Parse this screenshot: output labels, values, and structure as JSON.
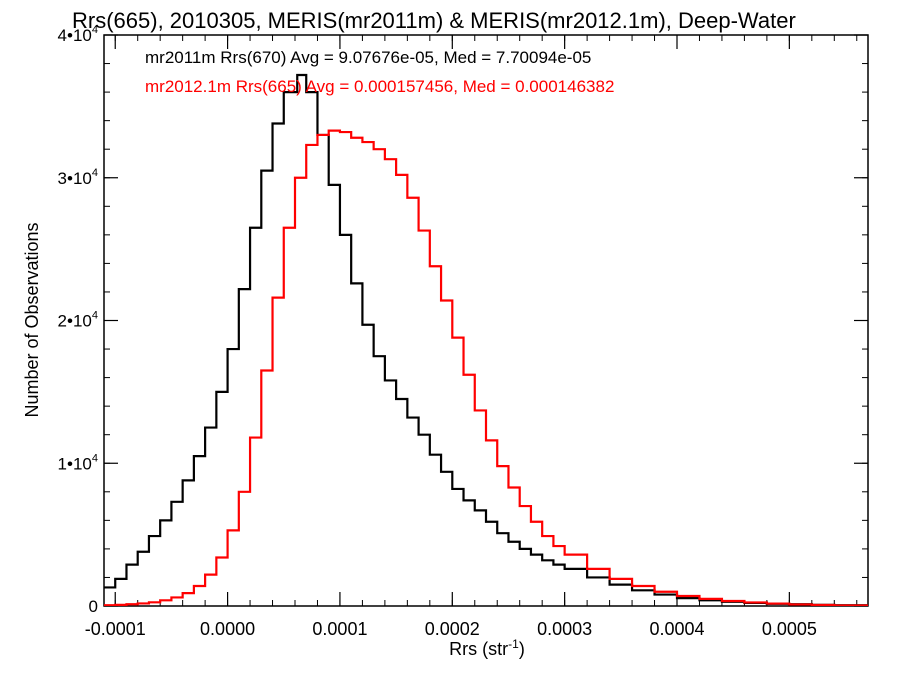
{
  "chart_data": {
    "type": "line",
    "title": "Rrs(665), 2010305, MERIS(mr2011m) & MERIS(mr2012.1m), Deep-Water",
    "xlabel": "Rrs (str",
    "xlabel_sup": "-1",
    "xlabel_close": ")",
    "ylabel": "Number of Observations",
    "xlim": [
      -0.00011,
      0.00057
    ],
    "ylim": [
      0,
      40000
    ],
    "grid": false,
    "x_ticks": [
      {
        "value": -0.0001,
        "label": "-0.0001"
      },
      {
        "value": 0.0,
        "label": "0.0000"
      },
      {
        "value": 0.0001,
        "label": "0.0001"
      },
      {
        "value": 0.0002,
        "label": "0.0002"
      },
      {
        "value": 0.0003,
        "label": "0.0003"
      },
      {
        "value": 0.0004,
        "label": "0.0004"
      },
      {
        "value": 0.0005,
        "label": "0.0005"
      }
    ],
    "y_ticks": [
      {
        "value": 0,
        "mant": "0",
        "exp": ""
      },
      {
        "value": 10000,
        "mant": "1•10",
        "exp": "4"
      },
      {
        "value": 20000,
        "mant": "2•10",
        "exp": "4"
      },
      {
        "value": 30000,
        "mant": "3•10",
        "exp": "4"
      },
      {
        "value": 40000,
        "mant": "4•10",
        "exp": "4"
      }
    ],
    "annotations": [
      {
        "text": "mr2011m Rrs(670) Avg = 9.07676e-05, Med = 7.70094e-05",
        "color": "#000000"
      },
      {
        "text": "mr2012.1m Rrs(665) Avg = 0.000157456, Med = 0.000146382",
        "color": "#ff0000"
      }
    ],
    "series": [
      {
        "color": "#000000",
        "x": [
          -0.00011,
          -0.0001,
          -9e-05,
          -8e-05,
          -7e-05,
          -6e-05,
          -5e-05,
          -4e-05,
          -3e-05,
          -2e-05,
          -1e-05,
          0.0,
          1e-05,
          2e-05,
          3e-05,
          4e-05,
          5e-05,
          6.2e-05,
          7e-05,
          8e-05,
          9e-05,
          0.0001,
          0.00011,
          0.00012,
          0.00013,
          0.00014,
          0.00015,
          0.00016,
          0.00017,
          0.00018,
          0.00019,
          0.0002,
          0.00021,
          0.00022,
          0.00023,
          0.00024,
          0.00025,
          0.00026,
          0.00027,
          0.00028,
          0.00029,
          0.0003,
          0.00032,
          0.00034,
          0.00036,
          0.00038,
          0.0004,
          0.00042,
          0.00044,
          0.00046,
          0.00048,
          0.0005,
          0.00052,
          0.00054,
          0.00057
        ],
        "y": [
          1300,
          1900,
          2900,
          3800,
          4900,
          6000,
          7300,
          8800,
          10500,
          12500,
          15000,
          18000,
          22200,
          26500,
          30500,
          33800,
          36000,
          37200,
          36000,
          33000,
          29500,
          26000,
          22600,
          19700,
          17500,
          15800,
          14500,
          13200,
          12000,
          10600,
          9400,
          8200,
          7400,
          6700,
          5900,
          5100,
          4500,
          4000,
          3600,
          3200,
          2900,
          2600,
          2000,
          1500,
          1100,
          800,
          550,
          400,
          300,
          220,
          160,
          120,
          80,
          50,
          20
        ]
      },
      {
        "color": "#ff0000",
        "x": [
          -0.00011,
          -0.0001,
          -9e-05,
          -8e-05,
          -7e-05,
          -6e-05,
          -5e-05,
          -4e-05,
          -3e-05,
          -2e-05,
          -1e-05,
          0.0,
          1e-05,
          2e-05,
          3e-05,
          4e-05,
          5e-05,
          6e-05,
          7e-05,
          8e-05,
          9e-05,
          0.0001,
          0.00011,
          0.00012,
          0.00013,
          0.00014,
          0.00015,
          0.00016,
          0.00017,
          0.00018,
          0.00019,
          0.0002,
          0.00021,
          0.00022,
          0.00023,
          0.00024,
          0.00025,
          0.00026,
          0.00027,
          0.00028,
          0.00029,
          0.0003,
          0.00032,
          0.00034,
          0.00036,
          0.00038,
          0.0004,
          0.00042,
          0.00044,
          0.00046,
          0.00048,
          0.0005,
          0.00052,
          0.00054,
          0.00057
        ],
        "y": [
          50,
          80,
          120,
          180,
          260,
          400,
          600,
          900,
          1400,
          2200,
          3400,
          5300,
          8000,
          11800,
          16500,
          21600,
          26500,
          30000,
          32300,
          33000,
          33300,
          33200,
          32800,
          32500,
          32000,
          31300,
          30200,
          28600,
          26300,
          23800,
          21400,
          18800,
          16200,
          13700,
          11600,
          9800,
          8300,
          7000,
          5900,
          4900,
          4200,
          3600,
          2600,
          1900,
          1400,
          1000,
          700,
          500,
          350,
          250,
          170,
          110,
          70,
          40,
          20
        ]
      }
    ]
  }
}
